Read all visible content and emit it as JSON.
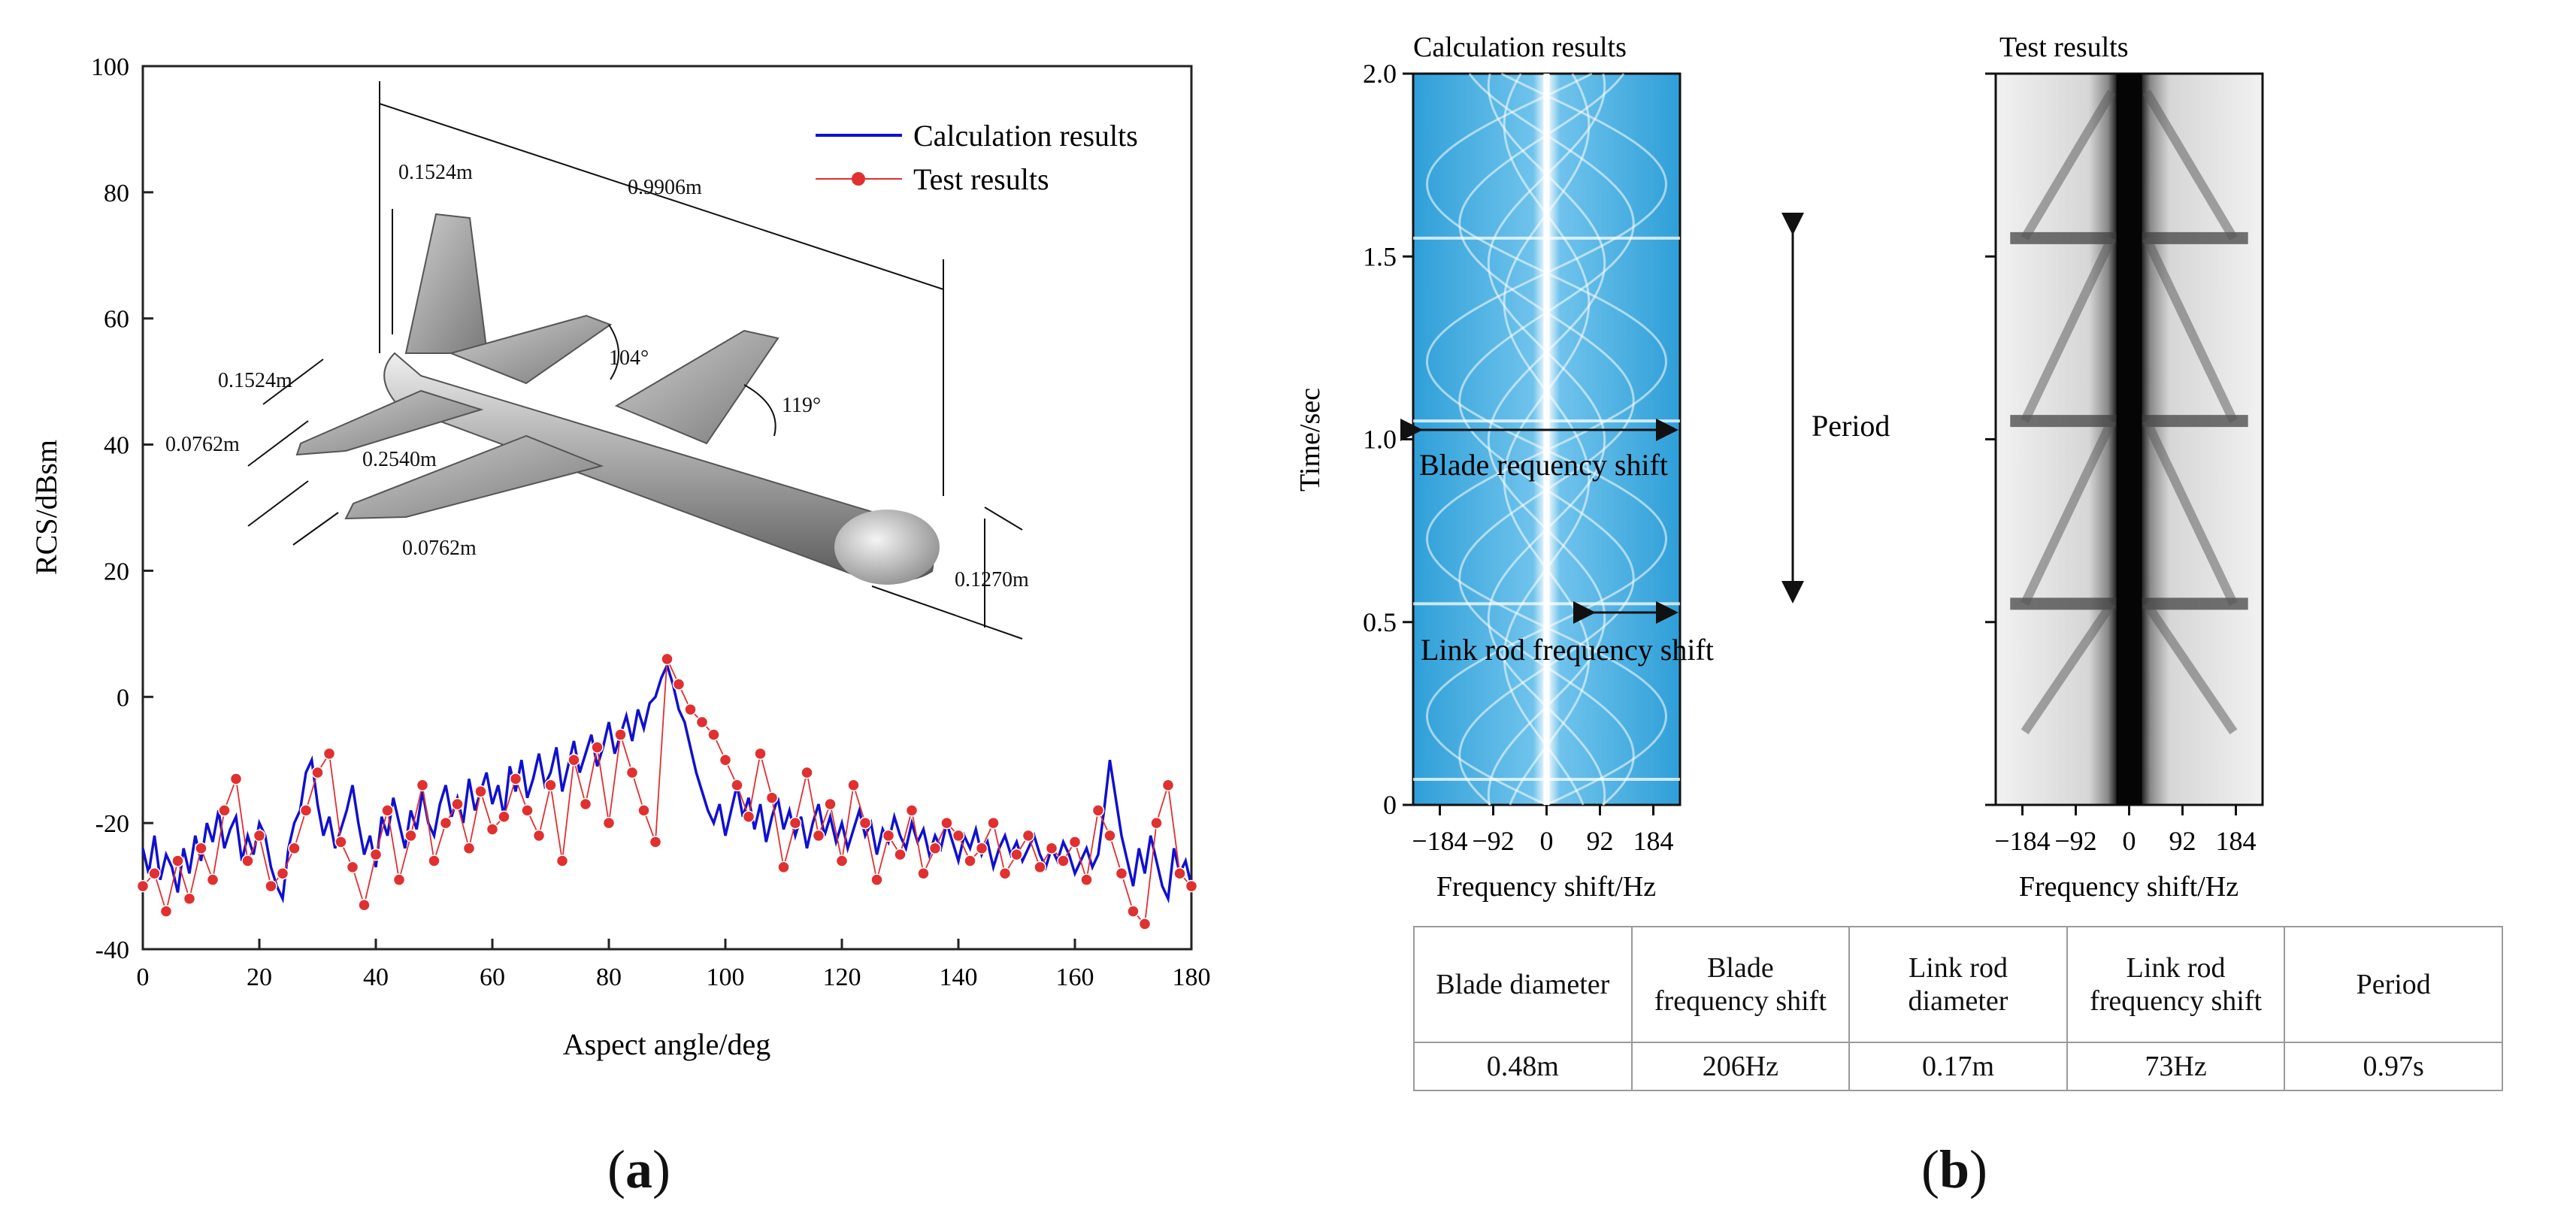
{
  "panel_labels": {
    "a": "a",
    "b": "b"
  },
  "chart_data": [
    {
      "type": "line",
      "panel": "a",
      "title": "",
      "xlabel": "Aspect angle/deg",
      "ylabel": "RCS/dBsm",
      "xlim": [
        0,
        180
      ],
      "ylim": [
        -40,
        100
      ],
      "xticks": [
        0,
        20,
        40,
        60,
        80,
        100,
        120,
        140,
        160,
        180
      ],
      "yticks": [
        -40,
        -20,
        0,
        20,
        40,
        60,
        80,
        100
      ],
      "legend": {
        "position": "top-right"
      },
      "series": [
        {
          "name": "Calculation results",
          "color": "#1010d0",
          "marker": "none",
          "x": [
            0,
            1,
            2,
            3,
            4,
            5,
            6,
            7,
            8,
            9,
            10,
            11,
            12,
            13,
            14,
            15,
            16,
            17,
            18,
            19,
            20,
            21,
            22,
            23,
            24,
            25,
            26,
            27,
            28,
            29,
            30,
            31,
            32,
            33,
            34,
            35,
            36,
            37,
            38,
            39,
            40,
            41,
            42,
            43,
            44,
            45,
            46,
            47,
            48,
            49,
            50,
            51,
            52,
            53,
            54,
            55,
            56,
            57,
            58,
            59,
            60,
            61,
            62,
            63,
            64,
            65,
            66,
            67,
            68,
            69,
            70,
            71,
            72,
            73,
            74,
            75,
            76,
            77,
            78,
            79,
            80,
            81,
            82,
            83,
            84,
            85,
            86,
            87,
            88,
            89,
            90,
            91,
            92,
            93,
            94,
            95,
            96,
            97,
            98,
            99,
            100,
            101,
            102,
            103,
            104,
            105,
            106,
            107,
            108,
            109,
            110,
            111,
            112,
            113,
            114,
            115,
            116,
            117,
            118,
            119,
            120,
            121,
            122,
            123,
            124,
            125,
            126,
            127,
            128,
            129,
            130,
            131,
            132,
            133,
            134,
            135,
            136,
            137,
            138,
            139,
            140,
            141,
            142,
            143,
            144,
            145,
            146,
            147,
            148,
            149,
            150,
            151,
            152,
            153,
            154,
            155,
            156,
            157,
            158,
            159,
            160,
            161,
            162,
            163,
            164,
            165,
            166,
            167,
            168,
            169,
            170,
            171,
            172,
            173,
            174,
            175,
            176,
            177,
            178,
            179,
            180
          ],
          "values": [
            -24,
            -28,
            -22,
            -29,
            -25,
            -27,
            -31,
            -24,
            -28,
            -22,
            -26,
            -20,
            -23,
            -18,
            -24,
            -21,
            -19,
            -26,
            -22,
            -25,
            -20,
            -22,
            -27,
            -30,
            -32,
            -24,
            -20,
            -18,
            -12,
            -10,
            -17,
            -22,
            -19,
            -24,
            -21,
            -18,
            -14,
            -20,
            -25,
            -22,
            -27,
            -19,
            -22,
            -16,
            -20,
            -24,
            -18,
            -21,
            -15,
            -20,
            -22,
            -17,
            -14,
            -19,
            -16,
            -20,
            -13,
            -18,
            -15,
            -12,
            -17,
            -14,
            -19,
            -11,
            -15,
            -10,
            -16,
            -13,
            -9,
            -14,
            -12,
            -8,
            -15,
            -11,
            -7,
            -12,
            -9,
            -6,
            -11,
            -8,
            -4,
            -9,
            -6,
            -3,
            -7,
            -2,
            -5,
            -1,
            0,
            3,
            5,
            2,
            -2,
            -4,
            -8,
            -12,
            -15,
            -18,
            -20,
            -17,
            -22,
            -18,
            -14,
            -19,
            -16,
            -21,
            -17,
            -23,
            -19,
            -16,
            -21,
            -18,
            -22,
            -19,
            -24,
            -20,
            -17,
            -22,
            -19,
            -23,
            -20,
            -24,
            -21,
            -18,
            -22,
            -20,
            -25,
            -21,
            -23,
            -19,
            -22,
            -24,
            -20,
            -23,
            -21,
            -25,
            -22,
            -24,
            -20,
            -23,
            -26,
            -22,
            -24,
            -21,
            -25,
            -23,
            -27,
            -24,
            -22,
            -25,
            -23,
            -26,
            -24,
            -22,
            -25,
            -27,
            -24,
            -26,
            -23,
            -25,
            -28,
            -26,
            -24,
            -27,
            -25,
            -18,
            -10,
            -16,
            -22,
            -26,
            -30,
            -24,
            -28,
            -22,
            -26,
            -30,
            -32,
            -24,
            -28,
            -26,
            -30
          ]
        },
        {
          "name": "Test results",
          "color": "#e03030",
          "marker": "circle",
          "x": [
            0,
            2,
            4,
            6,
            8,
            10,
            12,
            14,
            16,
            18,
            20,
            22,
            24,
            26,
            28,
            30,
            32,
            34,
            36,
            38,
            40,
            42,
            44,
            46,
            48,
            50,
            52,
            54,
            56,
            58,
            60,
            62,
            64,
            66,
            68,
            70,
            72,
            74,
            76,
            78,
            80,
            82,
            84,
            86,
            88,
            90,
            92,
            94,
            96,
            98,
            100,
            102,
            104,
            106,
            108,
            110,
            112,
            114,
            116,
            118,
            120,
            122,
            124,
            126,
            128,
            130,
            132,
            134,
            136,
            138,
            140,
            142,
            144,
            146,
            148,
            150,
            152,
            154,
            156,
            158,
            160,
            162,
            164,
            166,
            168,
            170,
            172,
            174,
            176,
            178,
            180
          ],
          "values": [
            -30,
            -28,
            -34,
            -26,
            -32,
            -24,
            -29,
            -18,
            -13,
            -26,
            -22,
            -30,
            -28,
            -24,
            -18,
            -12,
            -9,
            -23,
            -27,
            -33,
            -25,
            -18,
            -29,
            -22,
            -14,
            -26,
            -20,
            -17,
            -24,
            -15,
            -21,
            -19,
            -13,
            -18,
            -22,
            -14,
            -26,
            -10,
            -17,
            -8,
            -20,
            -6,
            -12,
            -18,
            -23,
            6,
            2,
            -2,
            -4,
            -6,
            -10,
            -14,
            -19,
            -9,
            -16,
            -27,
            -20,
            -12,
            -22,
            -17,
            -26,
            -14,
            -20,
            -29,
            -22,
            -25,
            -18,
            -28,
            -24,
            -20,
            -22,
            -26,
            -24,
            -20,
            -28,
            -25,
            -22,
            -27,
            -24,
            -26,
            -23,
            -29,
            -18,
            -22,
            -28,
            -34,
            -36,
            -20,
            -14,
            -28,
            -30
          ]
        }
      ],
      "inset_annotations": [
        "0.1524m",
        "0.9906m",
        "104°",
        "119°",
        "0.1524m",
        "0.0762m",
        "0.2540m",
        "0.0762m",
        "0.1270m"
      ]
    },
    {
      "type": "heatmap",
      "panel": "b-left",
      "title": "Calculation results",
      "xlabel": "Frequency shift/Hz",
      "ylabel": "Time/sec",
      "xlim": [
        -230,
        230
      ],
      "ylim": [
        0,
        2.0
      ],
      "xticks": [
        -184,
        -92,
        0,
        92,
        184
      ],
      "yticks": [
        0,
        0.5,
        1.0,
        1.5,
        2.0
      ],
      "yticklabels": [
        "0",
        "0.5",
        "1.0",
        "1.5",
        "2.0"
      ],
      "annotations": [
        "Period",
        "Blade requency shift",
        "Link rod frequency shift"
      ]
    },
    {
      "type": "heatmap",
      "panel": "b-right",
      "title": "Test results",
      "xlabel": "Frequency shift/Hz",
      "ylabel": "",
      "xlim": [
        -230,
        230
      ],
      "ylim": [
        0,
        2.0
      ],
      "xticks": [
        -184,
        -92,
        0,
        92,
        184
      ]
    },
    {
      "type": "table",
      "panel": "b-table",
      "columns": [
        "Blade diameter",
        "Blade frequency shift",
        "Link rod diameter",
        "Link rod frequency shift",
        "Period"
      ],
      "rows": [
        [
          "0.48m",
          "206Hz",
          "0.17m",
          "73Hz",
          "0.97s"
        ]
      ]
    }
  ],
  "colors": {
    "calc_line": "#1010d0",
    "test_marker": "#e03030",
    "spectrogram_bg": "#3aa6dc",
    "spectrogram_line": "#ffffff"
  },
  "table": {
    "h1": "Blade diameter",
    "h2a": "Blade",
    "h2b": "frequency shift",
    "h3a": "Link rod",
    "h3b": "diameter",
    "h4a": "Link rod",
    "h4b": "frequency shift",
    "h5": "Period",
    "v1": "0.48m",
    "v2": "206Hz",
    "v3": "0.17m",
    "v4": "73Hz",
    "v5": "0.97s"
  }
}
